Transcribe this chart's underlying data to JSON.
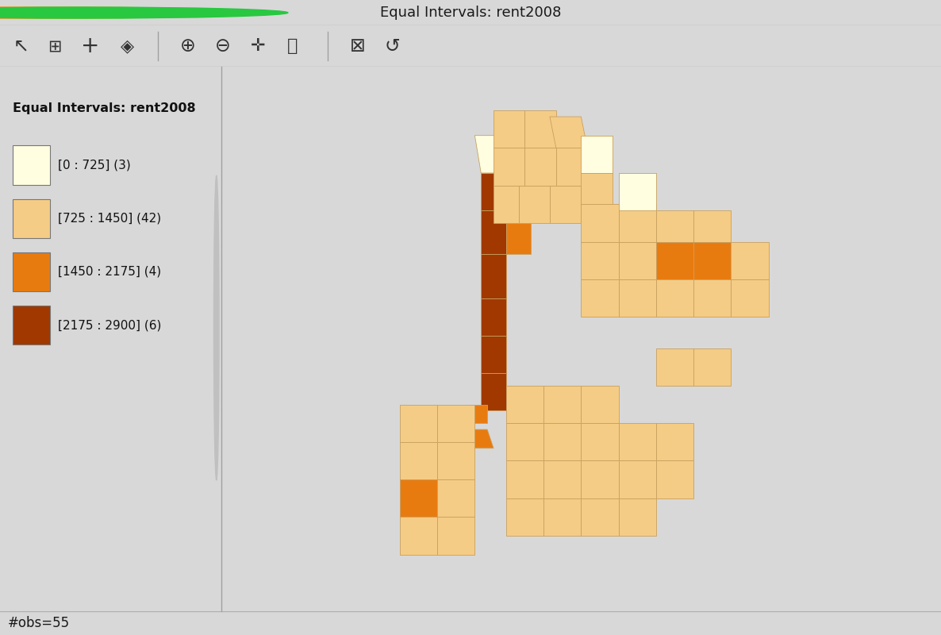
{
  "title": "Equal Intervals: rent2008",
  "window_title": "Equal Intervals: rent2008",
  "obs_label": "#obs=55",
  "legend_title": "Equal Intervals: rent2008",
  "legend_items": [
    {
      "label": "[0 : 725] (3)",
      "color": "#FFFEE0"
    },
    {
      "label": "[725 : 1450] (42)",
      "color": "#F5CC85"
    },
    {
      "label": "[1450 : 2175] (4)",
      "color": "#E87B10"
    },
    {
      "label": "[2175 : 2900] (6)",
      "color": "#A03800"
    }
  ],
  "bg_color": "#D8D8D8",
  "panel_bg": "#FFFFFF",
  "toolbar_bg": "#C8C8C8",
  "map_bg": "#FFFFFF",
  "titlebar_color": "#E0E0E0",
  "edge_color": "#C8A060",
  "edge_width": 0.5
}
